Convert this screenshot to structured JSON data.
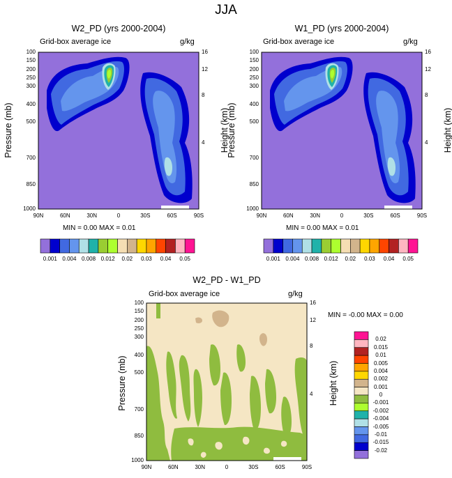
{
  "figure_title": "JJA",
  "chart_data": [
    {
      "type": "contour",
      "title": "W2_PD (yrs 2000-2004)",
      "subtitle_left": "Grid-box average ice",
      "subtitle_right": "g/kg",
      "ylabel_left": "Pressure (mb)",
      "ylabel_right": "Height (km)",
      "x_ticks": [
        "90N",
        "60N",
        "30N",
        "0",
        "30S",
        "60S",
        "90S"
      ],
      "y_ticks_pressure": [
        "100",
        "150",
        "200",
        "250",
        "300",
        "400",
        "500",
        "700",
        "850",
        "1000"
      ],
      "y_ticks_height": [
        "16",
        "12",
        "8",
        "4"
      ],
      "min_text": "MIN =   0.00   MAX =   0.01",
      "colorbar_levels": [
        "0.001",
        "0.004",
        "0.008",
        "0.012",
        "0.02",
        "0.03",
        "0.04",
        "0.05"
      ],
      "colorbar_colors": [
        "#9370db",
        "#0000cd",
        "#4169e1",
        "#6495ed",
        "#b0e0e6",
        "#20b2aa",
        "#9acd32",
        "#adff2f",
        "#f5deb3",
        "#d2b48c",
        "#ffd700",
        "#ffa500",
        "#ff4500",
        "#b22222",
        "#ffb6c1",
        "#ff1493"
      ]
    },
    {
      "type": "contour",
      "title": "W1_PD (yrs 2000-2004)",
      "subtitle_left": "Grid-box average ice",
      "subtitle_right": "g/kg",
      "ylabel_left": "Pressure (mb)",
      "ylabel_right": "Height (km)",
      "x_ticks": [
        "90N",
        "60N",
        "30N",
        "0",
        "30S",
        "60S",
        "90S"
      ],
      "y_ticks_pressure": [
        "100",
        "150",
        "200",
        "250",
        "300",
        "400",
        "500",
        "700",
        "850",
        "1000"
      ],
      "y_ticks_height": [
        "16",
        "12",
        "8",
        "4"
      ],
      "min_text": "MIN =   0.00   MAX =   0.01",
      "colorbar_levels": [
        "0.001",
        "0.004",
        "0.008",
        "0.012",
        "0.02",
        "0.03",
        "0.04",
        "0.05"
      ]
    },
    {
      "type": "contour",
      "title": "W2_PD - W1_PD",
      "subtitle_left": "Grid-box average ice",
      "subtitle_right": "g/kg",
      "ylabel_left": "Pressure (mb)",
      "ylabel_right": "Height (km)",
      "x_ticks": [
        "90N",
        "60N",
        "30N",
        "0",
        "30S",
        "60S",
        "90S"
      ],
      "y_ticks_pressure": [
        "100",
        "150",
        "200",
        "250",
        "300",
        "400",
        "500",
        "700",
        "850",
        "1000"
      ],
      "y_ticks_height": [
        "16",
        "12",
        "8",
        "4"
      ],
      "min_text": "MIN =  -0.00   MAX =   0.00",
      "colorbar_levels": [
        "0.02",
        "0.015",
        "0.01",
        "0.005",
        "0.004",
        "0.002",
        "0.001",
        "0",
        "-0.001",
        "-0.002",
        "-0.004",
        "-0.005",
        "-0.01",
        "-0.015",
        "-0.02"
      ],
      "colorbar_colors": [
        "#ff1493",
        "#ffb6c1",
        "#b22222",
        "#ff4500",
        "#ffa500",
        "#ffd700",
        "#d2b48c",
        "#f5e6c4",
        "#8fbc3f",
        "#adff2f",
        "#20b2aa",
        "#b0e0e6",
        "#6495ed",
        "#4169e1",
        "#0000cd",
        "#9370db"
      ]
    }
  ]
}
